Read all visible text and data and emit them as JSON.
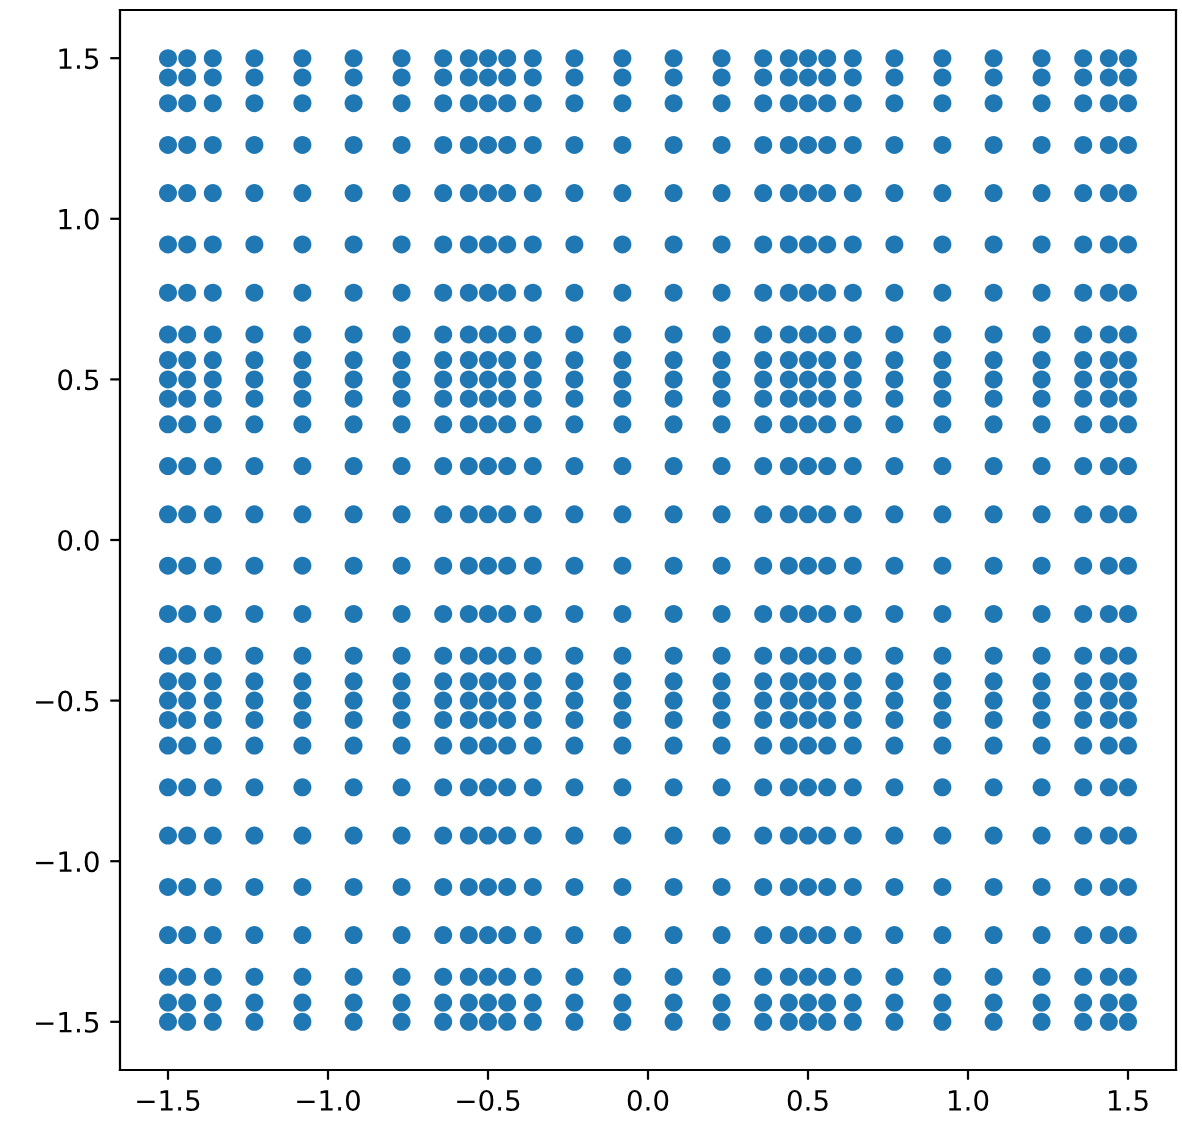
{
  "chart_data": {
    "type": "scatter",
    "color": "#1f77b4",
    "marker": "circle",
    "grid": false,
    "legend": false,
    "xlim": [
      -1.65,
      1.65
    ],
    "ylim": [
      -1.65,
      1.65
    ],
    "xticks": [
      {
        "value": -1.5,
        "label": "−1.5"
      },
      {
        "value": -1.0,
        "label": "−1.0"
      },
      {
        "value": -0.5,
        "label": "−0.5"
      },
      {
        "value": 0.0,
        "label": "0.0"
      },
      {
        "value": 0.5,
        "label": "0.5"
      },
      {
        "value": 1.0,
        "label": "1.0"
      },
      {
        "value": 1.5,
        "label": "1.5"
      }
    ],
    "yticks": [
      {
        "value": -1.5,
        "label": "−1.5"
      },
      {
        "value": -1.0,
        "label": "−1.0"
      },
      {
        "value": -0.5,
        "label": "−0.5"
      },
      {
        "value": 0.0,
        "label": "0.0"
      },
      {
        "value": 0.5,
        "label": "0.5"
      },
      {
        "value": 1.0,
        "label": "1.0"
      },
      {
        "value": 1.5,
        "label": "1.5"
      }
    ],
    "x": [
      -1.5,
      -1.5,
      -1.5,
      -1.5,
      -1.5,
      -1.5,
      -1.5,
      -1.5,
      -1.5,
      -1.5,
      -1.5,
      -1.5,
      -1.5,
      -1.5,
      -1.5,
      -1.5,
      -1.5,
      -1.5,
      -1.5,
      -1.5,
      -1.5,
      -1.5,
      -1.5,
      -1.5,
      -1.5,
      -1.5,
      -1.5,
      -1.5,
      -1.44,
      -1.44,
      -1.44,
      -1.44,
      -1.44,
      -1.44,
      -1.44,
      -1.44,
      -1.44,
      -1.44,
      -1.44,
      -1.44,
      -1.44,
      -1.44,
      -1.44,
      -1.44,
      -1.44,
      -1.44,
      -1.44,
      -1.44,
      -1.44,
      -1.44,
      -1.44,
      -1.44,
      -1.44,
      -1.44,
      -1.44,
      -1.44,
      -1.36,
      -1.36,
      -1.36,
      -1.36,
      -1.36,
      -1.36,
      -1.36,
      -1.36,
      -1.36,
      -1.36,
      -1.36,
      -1.36,
      -1.36,
      -1.36,
      -1.36,
      -1.36,
      -1.36,
      -1.36,
      -1.36,
      -1.36,
      -1.36,
      -1.36,
      -1.36,
      -1.36,
      -1.36,
      -1.36,
      -1.36,
      -1.36,
      -1.23,
      -1.23,
      -1.23,
      -1.23,
      -1.23,
      -1.23,
      -1.23,
      -1.23,
      -1.23,
      -1.23,
      -1.23,
      -1.23,
      -1.23,
      -1.23,
      -1.23,
      -1.23,
      -1.23,
      -1.23,
      -1.23,
      -1.23,
      -1.23,
      -1.23,
      -1.23,
      -1.23,
      -1.23,
      -1.23,
      -1.23,
      -1.23,
      -1.08,
      -1.08,
      -1.08,
      -1.08,
      -1.08,
      -1.08,
      -1.08,
      -1.08,
      -1.08,
      -1.08,
      -1.08,
      -1.08,
      -1.08,
      -1.08,
      -1.08,
      -1.08,
      -1.08,
      -1.08,
      -1.08,
      -1.08,
      -1.08,
      -1.08,
      -1.08,
      -1.08,
      -1.08,
      -1.08,
      -1.08,
      -1.08,
      -0.92,
      -0.92,
      -0.92,
      -0.92,
      -0.92,
      -0.92,
      -0.92,
      -0.92,
      -0.92,
      -0.92,
      -0.92,
      -0.92,
      -0.92,
      -0.92,
      -0.92,
      -0.92,
      -0.92,
      -0.92,
      -0.92,
      -0.92,
      -0.92,
      -0.92,
      -0.92,
      -0.92,
      -0.92,
      -0.92,
      -0.92,
      -0.92,
      -0.77,
      -0.77,
      -0.77,
      -0.77,
      -0.77,
      -0.77,
      -0.77,
      -0.77,
      -0.77,
      -0.77,
      -0.77,
      -0.77,
      -0.77,
      -0.77,
      -0.77,
      -0.77,
      -0.77,
      -0.77,
      -0.77,
      -0.77,
      -0.77,
      -0.77,
      -0.77,
      -0.77,
      -0.77,
      -0.77,
      -0.77,
      -0.77,
      -0.64,
      -0.64,
      -0.64,
      -0.64,
      -0.64,
      -0.64,
      -0.64,
      -0.64,
      -0.64,
      -0.64,
      -0.64,
      -0.64,
      -0.64,
      -0.64,
      -0.64,
      -0.64,
      -0.64,
      -0.64,
      -0.64,
      -0.64,
      -0.64,
      -0.64,
      -0.64,
      -0.64,
      -0.64,
      -0.64,
      -0.64,
      -0.64,
      -0.56,
      -0.56,
      -0.56,
      -0.56,
      -0.56,
      -0.56,
      -0.56,
      -0.56,
      -0.56,
      -0.56,
      -0.56,
      -0.56,
      -0.56,
      -0.56,
      -0.56,
      -0.56,
      -0.56,
      -0.56,
      -0.56,
      -0.56,
      -0.56,
      -0.56,
      -0.56,
      -0.56,
      -0.56,
      -0.56,
      -0.56,
      -0.56,
      -0.5,
      -0.5,
      -0.5,
      -0.5,
      -0.5,
      -0.5,
      -0.5,
      -0.5,
      -0.5,
      -0.5,
      -0.5,
      -0.5,
      -0.5,
      -0.5,
      -0.5,
      -0.5,
      -0.5,
      -0.5,
      -0.5,
      -0.5,
      -0.5,
      -0.5,
      -0.5,
      -0.5,
      -0.5,
      -0.5,
      -0.5,
      -0.5,
      -0.44,
      -0.44,
      -0.44,
      -0.44,
      -0.44,
      -0.44,
      -0.44,
      -0.44,
      -0.44,
      -0.44,
      -0.44,
      -0.44,
      -0.44,
      -0.44,
      -0.44,
      -0.44,
      -0.44,
      -0.44,
      -0.44,
      -0.44,
      -0.44,
      -0.44,
      -0.44,
      -0.44,
      -0.44,
      -0.44,
      -0.44,
      -0.44,
      -0.36,
      -0.36,
      -0.36,
      -0.36,
      -0.36,
      -0.36,
      -0.36,
      -0.36,
      -0.36,
      -0.36,
      -0.36,
      -0.36,
      -0.36,
      -0.36,
      -0.36,
      -0.36,
      -0.36,
      -0.36,
      -0.36,
      -0.36,
      -0.36,
      -0.36,
      -0.36,
      -0.36,
      -0.36,
      -0.36,
      -0.36,
      -0.36,
      -0.23,
      -0.23,
      -0.23,
      -0.23,
      -0.23,
      -0.23,
      -0.23,
      -0.23,
      -0.23,
      -0.23,
      -0.23,
      -0.23,
      -0.23,
      -0.23,
      -0.23,
      -0.23,
      -0.23,
      -0.23,
      -0.23,
      -0.23,
      -0.23,
      -0.23,
      -0.23,
      -0.23,
      -0.23,
      -0.23,
      -0.23,
      -0.23,
      -0.08,
      -0.08,
      -0.08,
      -0.08,
      -0.08,
      -0.08,
      -0.08,
      -0.08,
      -0.08,
      -0.08,
      -0.08,
      -0.08,
      -0.08,
      -0.08,
      -0.08,
      -0.08,
      -0.08,
      -0.08,
      -0.08,
      -0.08,
      -0.08,
      -0.08,
      -0.08,
      -0.08,
      -0.08,
      -0.08,
      -0.08,
      -0.08,
      0.08,
      0.08,
      0.08,
      0.08,
      0.08,
      0.08,
      0.08,
      0.08,
      0.08,
      0.08,
      0.08,
      0.08,
      0.08,
      0.08,
      0.08,
      0.08,
      0.08,
      0.08,
      0.08,
      0.08,
      0.08,
      0.08,
      0.08,
      0.08,
      0.08,
      0.08,
      0.08,
      0.08,
      0.23,
      0.23,
      0.23,
      0.23,
      0.23,
      0.23,
      0.23,
      0.23,
      0.23,
      0.23,
      0.23,
      0.23,
      0.23,
      0.23,
      0.23,
      0.23,
      0.23,
      0.23,
      0.23,
      0.23,
      0.23,
      0.23,
      0.23,
      0.23,
      0.23,
      0.23,
      0.23,
      0.23,
      0.36,
      0.36,
      0.36,
      0.36,
      0.36,
      0.36,
      0.36,
      0.36,
      0.36,
      0.36,
      0.36,
      0.36,
      0.36,
      0.36,
      0.36,
      0.36,
      0.36,
      0.36,
      0.36,
      0.36,
      0.36,
      0.36,
      0.36,
      0.36,
      0.36,
      0.36,
      0.36,
      0.36,
      0.44,
      0.44,
      0.44,
      0.44,
      0.44,
      0.44,
      0.44,
      0.44,
      0.44,
      0.44,
      0.44,
      0.44,
      0.44,
      0.44,
      0.44,
      0.44,
      0.44,
      0.44,
      0.44,
      0.44,
      0.44,
      0.44,
      0.44,
      0.44,
      0.44,
      0.44,
      0.44,
      0.44,
      0.5,
      0.5,
      0.5,
      0.5,
      0.5,
      0.5,
      0.5,
      0.5,
      0.5,
      0.5,
      0.5,
      0.5,
      0.5,
      0.5,
      0.5,
      0.5,
      0.5,
      0.5,
      0.5,
      0.5,
      0.5,
      0.5,
      0.5,
      0.5,
      0.5,
      0.5,
      0.5,
      0.5,
      0.56,
      0.56,
      0.56,
      0.56,
      0.56,
      0.56,
      0.56,
      0.56,
      0.56,
      0.56,
      0.56,
      0.56,
      0.56,
      0.56,
      0.56,
      0.56,
      0.56,
      0.56,
      0.56,
      0.56,
      0.56,
      0.56,
      0.56,
      0.56,
      0.56,
      0.56,
      0.56,
      0.56,
      0.64,
      0.64,
      0.64,
      0.64,
      0.64,
      0.64,
      0.64,
      0.64,
      0.64,
      0.64,
      0.64,
      0.64,
      0.64,
      0.64,
      0.64,
      0.64,
      0.64,
      0.64,
      0.64,
      0.64,
      0.64,
      0.64,
      0.64,
      0.64,
      0.64,
      0.64,
      0.64,
      0.64,
      0.77,
      0.77,
      0.77,
      0.77,
      0.77,
      0.77,
      0.77,
      0.77,
      0.77,
      0.77,
      0.77,
      0.77,
      0.77,
      0.77,
      0.77,
      0.77,
      0.77,
      0.77,
      0.77,
      0.77,
      0.77,
      0.77,
      0.77,
      0.77,
      0.77,
      0.77,
      0.77,
      0.77,
      0.92,
      0.92,
      0.92,
      0.92,
      0.92,
      0.92,
      0.92,
      0.92,
      0.92,
      0.92,
      0.92,
      0.92,
      0.92,
      0.92,
      0.92,
      0.92,
      0.92,
      0.92,
      0.92,
      0.92,
      0.92,
      0.92,
      0.92,
      0.92,
      0.92,
      0.92,
      0.92,
      0.92,
      1.08,
      1.08,
      1.08,
      1.08,
      1.08,
      1.08,
      1.08,
      1.08,
      1.08,
      1.08,
      1.08,
      1.08,
      1.08,
      1.08,
      1.08,
      1.08,
      1.08,
      1.08,
      1.08,
      1.08,
      1.08,
      1.08,
      1.08,
      1.08,
      1.08,
      1.08,
      1.08,
      1.08,
      1.23,
      1.23,
      1.23,
      1.23,
      1.23,
      1.23,
      1.23,
      1.23,
      1.23,
      1.23,
      1.23,
      1.23,
      1.23,
      1.23,
      1.23,
      1.23,
      1.23,
      1.23,
      1.23,
      1.23,
      1.23,
      1.23,
      1.23,
      1.23,
      1.23,
      1.23,
      1.23,
      1.23,
      1.36,
      1.36,
      1.36,
      1.36,
      1.36,
      1.36,
      1.36,
      1.36,
      1.36,
      1.36,
      1.36,
      1.36,
      1.36,
      1.36,
      1.36,
      1.36,
      1.36,
      1.36,
      1.36,
      1.36,
      1.36,
      1.36,
      1.36,
      1.36,
      1.36,
      1.36,
      1.36,
      1.36,
      1.44,
      1.44,
      1.44,
      1.44,
      1.44,
      1.44,
      1.44,
      1.44,
      1.44,
      1.44,
      1.44,
      1.44,
      1.44,
      1.44,
      1.44,
      1.44,
      1.44,
      1.44,
      1.44,
      1.44,
      1.44,
      1.44,
      1.44,
      1.44,
      1.44,
      1.44,
      1.44,
      1.44,
      1.5,
      1.5,
      1.5,
      1.5,
      1.5,
      1.5,
      1.5,
      1.5,
      1.5,
      1.5,
      1.5,
      1.5,
      1.5,
      1.5,
      1.5,
      1.5,
      1.5,
      1.5,
      1.5,
      1.5,
      1.5,
      1.5,
      1.5,
      1.5,
      1.5,
      1.5,
      1.5,
      1.5
    ],
    "values": [
      -1.5,
      -1.44,
      -1.36,
      -1.23,
      -1.08,
      -0.92,
      -0.77,
      -0.64,
      -0.56,
      -0.5,
      -0.44,
      -0.36,
      -0.23,
      -0.08,
      0.08,
      0.23,
      0.36,
      0.44,
      0.5,
      0.56,
      0.64,
      0.77,
      0.92,
      1.08,
      1.23,
      1.36,
      1.44,
      1.5,
      -1.5,
      -1.44,
      -1.36,
      -1.23,
      -1.08,
      -0.92,
      -0.77,
      -0.64,
      -0.56,
      -0.5,
      -0.44,
      -0.36,
      -0.23,
      -0.08,
      0.08,
      0.23,
      0.36,
      0.44,
      0.5,
      0.56,
      0.64,
      0.77,
      0.92,
      1.08,
      1.23,
      1.36,
      1.44,
      1.5,
      -1.5,
      -1.44,
      -1.36,
      -1.23,
      -1.08,
      -0.92,
      -0.77,
      -0.64,
      -0.56,
      -0.5,
      -0.44,
      -0.36,
      -0.23,
      -0.08,
      0.08,
      0.23,
      0.36,
      0.44,
      0.5,
      0.56,
      0.64,
      0.77,
      0.92,
      1.08,
      1.23,
      1.36,
      1.44,
      1.5,
      -1.5,
      -1.44,
      -1.36,
      -1.23,
      -1.08,
      -0.92,
      -0.77,
      -0.64,
      -0.56,
      -0.5,
      -0.44,
      -0.36,
      -0.23,
      -0.08,
      0.08,
      0.23,
      0.36,
      0.44,
      0.5,
      0.56,
      0.64,
      0.77,
      0.92,
      1.08,
      1.23,
      1.36,
      1.44,
      1.5,
      -1.5,
      -1.44,
      -1.36,
      -1.23,
      -1.08,
      -0.92,
      -0.77,
      -0.64,
      -0.56,
      -0.5,
      -0.44,
      -0.36,
      -0.23,
      -0.08,
      0.08,
      0.23,
      0.36,
      0.44,
      0.5,
      0.56,
      0.64,
      0.77,
      0.92,
      1.08,
      1.23,
      1.36,
      1.44,
      1.5,
      -1.5,
      -1.44,
      -1.36,
      -1.23,
      -1.08,
      -0.92,
      -0.77,
      -0.64,
      -0.56,
      -0.5,
      -0.44,
      -0.36,
      -0.23,
      -0.08,
      0.08,
      0.23,
      0.36,
      0.44,
      0.5,
      0.56,
      0.64,
      0.77,
      0.92,
      1.08,
      1.23,
      1.36,
      1.44,
      1.5,
      -1.5,
      -1.44,
      -1.36,
      -1.23,
      -1.08,
      -0.92,
      -0.77,
      -0.64,
      -0.56,
      -0.5,
      -0.44,
      -0.36,
      -0.23,
      -0.08,
      0.08,
      0.23,
      0.36,
      0.44,
      0.5,
      0.56,
      0.64,
      0.77,
      0.92,
      1.08,
      1.23,
      1.36,
      1.44,
      1.5,
      -1.5,
      -1.44,
      -1.36,
      -1.23,
      -1.08,
      -0.92,
      -0.77,
      -0.64,
      -0.56,
      -0.5,
      -0.44,
      -0.36,
      -0.23,
      -0.08,
      0.08,
      0.23,
      0.36,
      0.44,
      0.5,
      0.56,
      0.64,
      0.77,
      0.92,
      1.08,
      1.23,
      1.36,
      1.44,
      1.5,
      -1.5,
      -1.44,
      -1.36,
      -1.23,
      -1.08,
      -0.92,
      -0.77,
      -0.64,
      -0.56,
      -0.5,
      -0.44,
      -0.36,
      -0.23,
      -0.08,
      0.08,
      0.23,
      0.36,
      0.44,
      0.5,
      0.56,
      0.64,
      0.77,
      0.92,
      1.08,
      1.23,
      1.36,
      1.44,
      1.5,
      -1.5,
      -1.44,
      -1.36,
      -1.23,
      -1.08,
      -0.92,
      -0.77,
      -0.64,
      -0.56,
      -0.5,
      -0.44,
      -0.36,
      -0.23,
      -0.08,
      0.08,
      0.23,
      0.36,
      0.44,
      0.5,
      0.56,
      0.64,
      0.77,
      0.92,
      1.08,
      1.23,
      1.36,
      1.44,
      1.5,
      -1.5,
      -1.44,
      -1.36,
      -1.23,
      -1.08,
      -0.92,
      -0.77,
      -0.64,
      -0.56,
      -0.5,
      -0.44,
      -0.36,
      -0.23,
      -0.08,
      0.08,
      0.23,
      0.36,
      0.44,
      0.5,
      0.56,
      0.64,
      0.77,
      0.92,
      1.08,
      1.23,
      1.36,
      1.44,
      1.5,
      -1.5,
      -1.44,
      -1.36,
      -1.23,
      -1.08,
      -0.92,
      -0.77,
      -0.64,
      -0.56,
      -0.5,
      -0.44,
      -0.36,
      -0.23,
      -0.08,
      0.08,
      0.23,
      0.36,
      0.44,
      0.5,
      0.56,
      0.64,
      0.77,
      0.92,
      1.08,
      1.23,
      1.36,
      1.44,
      1.5,
      -1.5,
      -1.44,
      -1.36,
      -1.23,
      -1.08,
      -0.92,
      -0.77,
      -0.64,
      -0.56,
      -0.5,
      -0.44,
      -0.36,
      -0.23,
      -0.08,
      0.08,
      0.23,
      0.36,
      0.44,
      0.5,
      0.56,
      0.64,
      0.77,
      0.92,
      1.08,
      1.23,
      1.36,
      1.44,
      1.5,
      -1.5,
      -1.44,
      -1.36,
      -1.23,
      -1.08,
      -0.92,
      -0.77,
      -0.64,
      -0.56,
      -0.5,
      -0.44,
      -0.36,
      -0.23,
      -0.08,
      0.08,
      0.23,
      0.36,
      0.44,
      0.5,
      0.56,
      0.64,
      0.77,
      0.92,
      1.08,
      1.23,
      1.36,
      1.44,
      1.5,
      -1.5,
      -1.44,
      -1.36,
      -1.23,
      -1.08,
      -0.92,
      -0.77,
      -0.64,
      -0.56,
      -0.5,
      -0.44,
      -0.36,
      -0.23,
      -0.08,
      0.08,
      0.23,
      0.36,
      0.44,
      0.5,
      0.56,
      0.64,
      0.77,
      0.92,
      1.08,
      1.23,
      1.36,
      1.44,
      1.5,
      -1.5,
      -1.44,
      -1.36,
      -1.23,
      -1.08,
      -0.92,
      -0.77,
      -0.64,
      -0.56,
      -0.5,
      -0.44,
      -0.36,
      -0.23,
      -0.08,
      0.08,
      0.23,
      0.36,
      0.44,
      0.5,
      0.56,
      0.64,
      0.77,
      0.92,
      1.08,
      1.23,
      1.36,
      1.44,
      1.5,
      -1.5,
      -1.44,
      -1.36,
      -1.23,
      -1.08,
      -0.92,
      -0.77,
      -0.64,
      -0.56,
      -0.5,
      -0.44,
      -0.36,
      -0.23,
      -0.08,
      0.08,
      0.23,
      0.36,
      0.44,
      0.5,
      0.56,
      0.64,
      0.77,
      0.92,
      1.08,
      1.23,
      1.36,
      1.44,
      1.5,
      -1.5,
      -1.44,
      -1.36,
      -1.23,
      -1.08,
      -0.92,
      -0.77,
      -0.64,
      -0.56,
      -0.5,
      -0.44,
      -0.36,
      -0.23,
      -0.08,
      0.08,
      0.23,
      0.36,
      0.44,
      0.5,
      0.56,
      0.64,
      0.77,
      0.92,
      1.08,
      1.23,
      1.36,
      1.44,
      1.5,
      -1.5,
      -1.44,
      -1.36,
      -1.23,
      -1.08,
      -0.92,
      -0.77,
      -0.64,
      -0.56,
      -0.5,
      -0.44,
      -0.36,
      -0.23,
      -0.08,
      0.08,
      0.23,
      0.36,
      0.44,
      0.5,
      0.56,
      0.64,
      0.77,
      0.92,
      1.08,
      1.23,
      1.36,
      1.44,
      1.5,
      -1.5,
      -1.44,
      -1.36,
      -1.23,
      -1.08,
      -0.92,
      -0.77,
      -0.64,
      -0.56,
      -0.5,
      -0.44,
      -0.36,
      -0.23,
      -0.08,
      0.08,
      0.23,
      0.36,
      0.44,
      0.5,
      0.56,
      0.64,
      0.77,
      0.92,
      1.08,
      1.23,
      1.36,
      1.44,
      1.5,
      -1.5,
      -1.44,
      -1.36,
      -1.23,
      -1.08,
      -0.92,
      -0.77,
      -0.64,
      -0.56,
      -0.5,
      -0.44,
      -0.36,
      -0.23,
      -0.08,
      0.08,
      0.23,
      0.36,
      0.44,
      0.5,
      0.56,
      0.64,
      0.77,
      0.92,
      1.08,
      1.23,
      1.36,
      1.44,
      1.5,
      -1.5,
      -1.44,
      -1.36,
      -1.23,
      -1.08,
      -0.92,
      -0.77,
      -0.64,
      -0.56,
      -0.5,
      -0.44,
      -0.36,
      -0.23,
      -0.08,
      0.08,
      0.23,
      0.36,
      0.44,
      0.5,
      0.56,
      0.64,
      0.77,
      0.92,
      1.08,
      1.23,
      1.36,
      1.44,
      1.5,
      -1.5,
      -1.44,
      -1.36,
      -1.23,
      -1.08,
      -0.92,
      -0.77,
      -0.64,
      -0.56,
      -0.5,
      -0.44,
      -0.36,
      -0.23,
      -0.08,
      0.08,
      0.23,
      0.36,
      0.44,
      0.5,
      0.56,
      0.64,
      0.77,
      0.92,
      1.08,
      1.23,
      1.36,
      1.44,
      1.5,
      -1.5,
      -1.44,
      -1.36,
      -1.23,
      -1.08,
      -0.92,
      -0.77,
      -0.64,
      -0.56,
      -0.5,
      -0.44,
      -0.36,
      -0.23,
      -0.08,
      0.08,
      0.23,
      0.36,
      0.44,
      0.5,
      0.56,
      0.64,
      0.77,
      0.92,
      1.08,
      1.23,
      1.36,
      1.44,
      1.5,
      -1.5,
      -1.44,
      -1.36,
      -1.23,
      -1.08,
      -0.92,
      -0.77,
      -0.64,
      -0.56,
      -0.5,
      -0.44,
      -0.36,
      -0.23,
      -0.08,
      0.08,
      0.23,
      0.36,
      0.44,
      0.5,
      0.56,
      0.64,
      0.77,
      0.92,
      1.08,
      1.23,
      1.36,
      1.44,
      1.5,
      -1.5,
      -1.44,
      -1.36,
      -1.23,
      -1.08,
      -0.92,
      -0.77,
      -0.64,
      -0.56,
      -0.5,
      -0.44,
      -0.36,
      -0.23,
      -0.08,
      0.08,
      0.23,
      0.36,
      0.44,
      0.5,
      0.56,
      0.64,
      0.77,
      0.92,
      1.08,
      1.23,
      1.36,
      1.44,
      1.5,
      -1.5,
      -1.44,
      -1.36,
      -1.23,
      -1.08,
      -0.92,
      -0.77,
      -0.64,
      -0.56,
      -0.5,
      -0.44,
      -0.36,
      -0.23,
      -0.08,
      0.08,
      0.23,
      0.36,
      0.44,
      0.5,
      0.56,
      0.64,
      0.77,
      0.92,
      1.08,
      1.23,
      1.36,
      1.44,
      1.5,
      -1.5,
      -1.44,
      -1.36,
      -1.23,
      -1.08,
      -0.92,
      -0.77,
      -0.64,
      -0.56,
      -0.5,
      -0.44,
      -0.36,
      -0.23,
      -0.08,
      0.08,
      0.23,
      0.36,
      0.44,
      0.5,
      0.56,
      0.64,
      0.77,
      0.92,
      1.08,
      1.23,
      1.36,
      1.44,
      1.5
    ]
  }
}
